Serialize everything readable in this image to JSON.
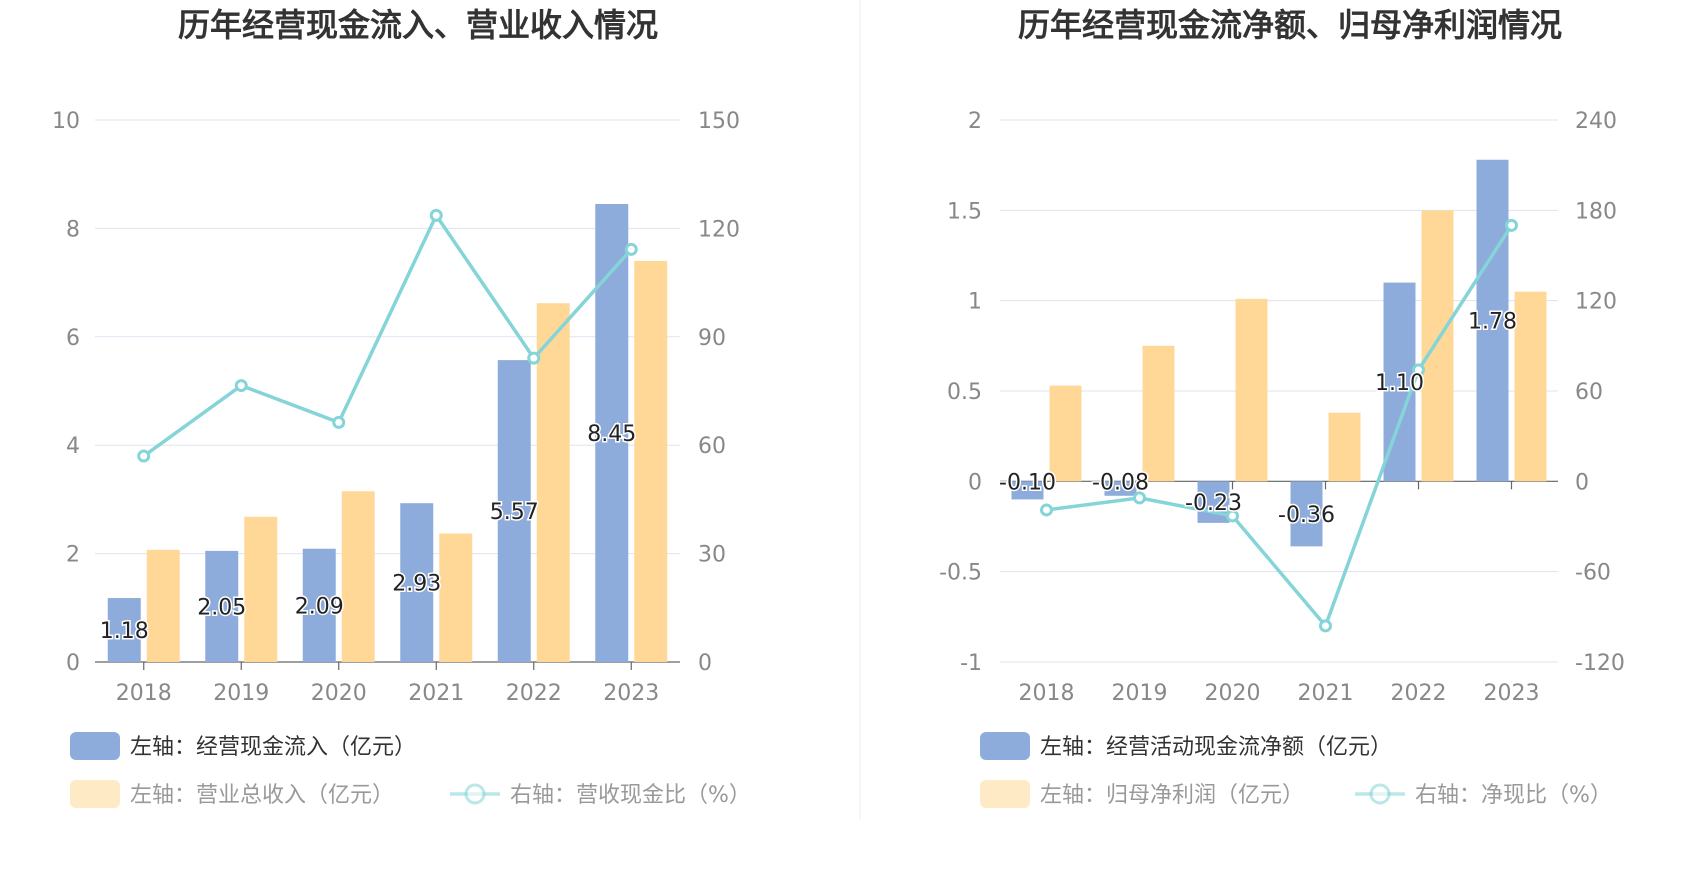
{
  "colors": {
    "bar_primary": "#8eacdb",
    "bar_secondary": "#ffd898",
    "line": "#84d4d8",
    "axis_label": "#888888",
    "title": "#333333",
    "grid": "#dfe3ef",
    "legend_text": "#333333",
    "legend_text_muted": "#999999"
  },
  "chart_data": [
    {
      "type": "bar",
      "title": "历年经营现金流入、营业收入情况",
      "categories": [
        "2018",
        "2019",
        "2020",
        "2021",
        "2022",
        "2023"
      ],
      "left_axis": {
        "ticks": [
          "0",
          "2",
          "4",
          "6",
          "8",
          "10"
        ],
        "ylim": [
          0,
          10
        ]
      },
      "right_axis": {
        "ticks": [
          "0",
          "30",
          "60",
          "90",
          "120",
          "150"
        ],
        "ylim": [
          0,
          150
        ]
      },
      "series": [
        {
          "name": "左轴：经营现金流入（亿元）",
          "type": "bar",
          "axis": "left",
          "values": [
            1.18,
            2.05,
            2.09,
            2.93,
            5.57,
            8.45
          ],
          "labels": [
            "1.18",
            "2.05",
            "2.09",
            "2.93",
            "5.57",
            "8.45"
          ]
        },
        {
          "name": "左轴：营业总收入（亿元）",
          "type": "bar",
          "axis": "left",
          "values": [
            2.07,
            2.68,
            3.15,
            2.37,
            6.62,
            7.4
          ]
        },
        {
          "name": "右轴：营收现金比（%）",
          "type": "line",
          "axis": "right",
          "values": [
            57,
            76.5,
            66.3,
            123.6,
            84.1,
            114.2
          ]
        }
      ],
      "legend_rows": [
        [
          "0"
        ],
        [
          "1",
          "2"
        ]
      ]
    },
    {
      "type": "bar",
      "title": "历年经营现金流净额、归母净利润情况",
      "categories": [
        "2018",
        "2019",
        "2020",
        "2021",
        "2022",
        "2023"
      ],
      "left_axis": {
        "ticks": [
          "-1",
          "-0.5",
          "0",
          "0.5",
          "1",
          "1.5",
          "2"
        ],
        "ylim": [
          -1,
          2
        ]
      },
      "right_axis": {
        "ticks": [
          "-120",
          "-60",
          "0",
          "60",
          "120",
          "180",
          "240"
        ],
        "ylim": [
          -120,
          240
        ]
      },
      "series": [
        {
          "name": "左轴：经营活动现金流净额（亿元）",
          "type": "bar",
          "axis": "left",
          "values": [
            -0.1,
            -0.08,
            -0.23,
            -0.36,
            1.1,
            1.78
          ],
          "labels": [
            "-0.10",
            "-0.08",
            "-0.23",
            "-0.36",
            "1.10",
            "1.78"
          ]
        },
        {
          "name": "左轴：归母净利润（亿元）",
          "type": "bar",
          "axis": "left",
          "values": [
            0.53,
            0.75,
            1.01,
            0.38,
            1.5,
            1.05
          ]
        },
        {
          "name": "右轴：净现比（%）",
          "type": "line",
          "axis": "right",
          "values": [
            -19,
            -11,
            -23,
            -96,
            74,
            170
          ]
        }
      ],
      "legend_rows": [
        [
          "0"
        ],
        [
          "1",
          "2"
        ]
      ]
    }
  ]
}
